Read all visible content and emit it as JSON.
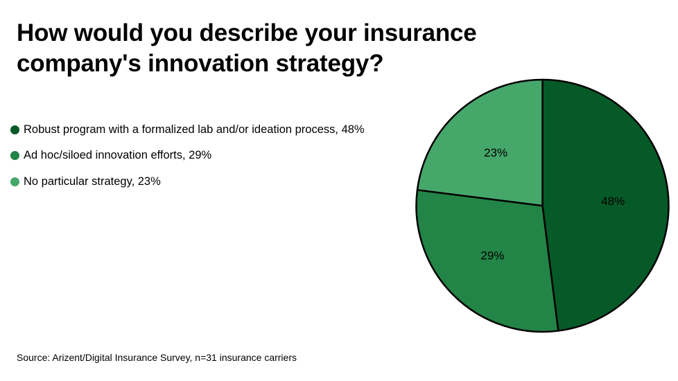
{
  "title": "How would you describe your insurance company's innovation strategy?",
  "source": "Source: Arizent/Digital Insurance Survey, n=31 insurance carriers",
  "chart_data": {
    "type": "pie",
    "title": "How would you describe your insurance company's innovation strategy?",
    "slices": [
      {
        "name": "Robust program with a formalized lab and/or ideation process",
        "value": 48,
        "legend_label": "Robust program with a formalized lab and/or ideation process, 48%",
        "data_label": "48%",
        "color": "#065A28"
      },
      {
        "name": "Ad hoc/siloed innovation efforts",
        "value": 29,
        "legend_label": "Ad hoc/siloed innovation efforts, 29%",
        "data_label": "29%",
        "color": "#228447"
      },
      {
        "name": "No particular strategy",
        "value": 23,
        "legend_label": "No particular strategy, 23%",
        "data_label": "23%",
        "color": "#46A76B"
      }
    ],
    "legend_position": "left",
    "start_direction": "top, clockwise",
    "outline_color": "#000000"
  }
}
